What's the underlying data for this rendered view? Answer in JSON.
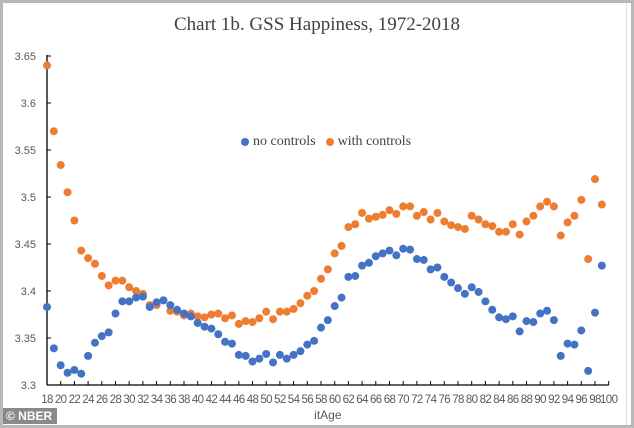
{
  "chart_data": {
    "type": "scatter",
    "title": "Chart 1b.  GSS Happiness, 1972-2018",
    "xlabel": "itAge",
    "ylabel": "",
    "xlim": [
      18,
      100
    ],
    "ylim": [
      3.3,
      3.65
    ],
    "yticks": [
      "3.3",
      "3.35",
      "3.4",
      "3.45",
      "3.5",
      "3.55",
      "3.6",
      "3.65"
    ],
    "ytick_values": [
      3.3,
      3.35,
      3.4,
      3.45,
      3.5,
      3.55,
      3.6,
      3.65
    ],
    "xticks": [
      "18",
      "20",
      "22",
      "24",
      "26",
      "28",
      "30",
      "32",
      "34",
      "36",
      "38",
      "40",
      "42",
      "44",
      "46",
      "48",
      "50",
      "52",
      "54",
      "56",
      "58",
      "60",
      "62",
      "64",
      "66",
      "68",
      "70",
      "72",
      "74",
      "76",
      "78",
      "80",
      "82",
      "84",
      "86",
      "88",
      "90",
      "92",
      "94",
      "96",
      "98",
      "100"
    ],
    "grid": false,
    "legend_position": "top-center",
    "x": [
      18,
      19,
      20,
      21,
      22,
      23,
      24,
      25,
      26,
      27,
      28,
      29,
      30,
      31,
      32,
      33,
      34,
      35,
      36,
      37,
      38,
      39,
      40,
      41,
      42,
      43,
      44,
      45,
      46,
      47,
      48,
      49,
      50,
      51,
      52,
      53,
      54,
      55,
      56,
      57,
      58,
      59,
      60,
      61,
      62,
      63,
      64,
      65,
      66,
      67,
      68,
      69,
      70,
      71,
      72,
      73,
      74,
      75,
      76,
      77,
      78,
      79,
      80,
      81,
      82,
      83,
      84,
      85,
      86,
      87,
      88,
      89,
      90,
      91,
      92,
      93,
      94,
      95,
      96,
      97,
      98,
      99
    ],
    "series": [
      {
        "name": "no controls",
        "color": "#4472c4",
        "values": [
          3.383,
          3.339,
          3.321,
          3.313,
          3.316,
          3.312,
          3.331,
          3.345,
          3.352,
          3.356,
          3.376,
          3.389,
          3.389,
          3.393,
          3.394,
          3.383,
          3.388,
          3.39,
          3.385,
          3.38,
          3.376,
          3.373,
          3.366,
          3.362,
          3.36,
          3.354,
          3.346,
          3.344,
          3.332,
          3.331,
          3.325,
          3.328,
          3.333,
          3.324,
          3.332,
          3.328,
          3.332,
          3.336,
          3.343,
          3.347,
          3.361,
          3.369,
          3.384,
          3.393,
          3.415,
          3.416,
          3.427,
          3.43,
          3.437,
          3.44,
          3.443,
          3.438,
          3.445,
          3.444,
          3.434,
          3.433,
          3.423,
          3.425,
          3.415,
          3.409,
          3.403,
          3.397,
          3.404,
          3.399,
          3.389,
          3.38,
          3.372,
          3.37,
          3.373,
          3.357,
          3.368,
          3.367,
          3.376,
          3.379,
          3.369,
          3.331,
          3.344,
          3.343,
          3.358,
          3.315,
          3.377,
          3.427
        ]
      },
      {
        "name": "with controls",
        "color": "#ed7d31",
        "values": [
          3.64,
          3.57,
          3.534,
          3.505,
          3.475,
          3.443,
          3.435,
          3.429,
          3.416,
          3.406,
          3.411,
          3.411,
          3.404,
          3.4,
          3.397,
          3.385,
          3.385,
          3.39,
          3.379,
          3.378,
          3.374,
          3.376,
          3.373,
          3.372,
          3.375,
          3.376,
          3.371,
          3.374,
          3.365,
          3.368,
          3.367,
          3.371,
          3.378,
          3.37,
          3.378,
          3.378,
          3.381,
          3.387,
          3.395,
          3.4,
          3.413,
          3.423,
          3.44,
          3.448,
          3.468,
          3.471,
          3.483,
          3.477,
          3.479,
          3.481,
          3.486,
          3.482,
          3.49,
          3.49,
          3.48,
          3.484,
          3.476,
          3.483,
          3.474,
          3.47,
          3.468,
          3.466,
          3.48,
          3.476,
          3.471,
          3.469,
          3.463,
          3.463,
          3.471,
          3.46,
          3.474,
          3.48,
          3.49,
          3.495,
          3.49,
          3.459,
          3.473,
          3.48,
          3.497,
          3.434,
          3.519,
          3.492
        ]
      }
    ]
  },
  "watermark": "© NBER"
}
